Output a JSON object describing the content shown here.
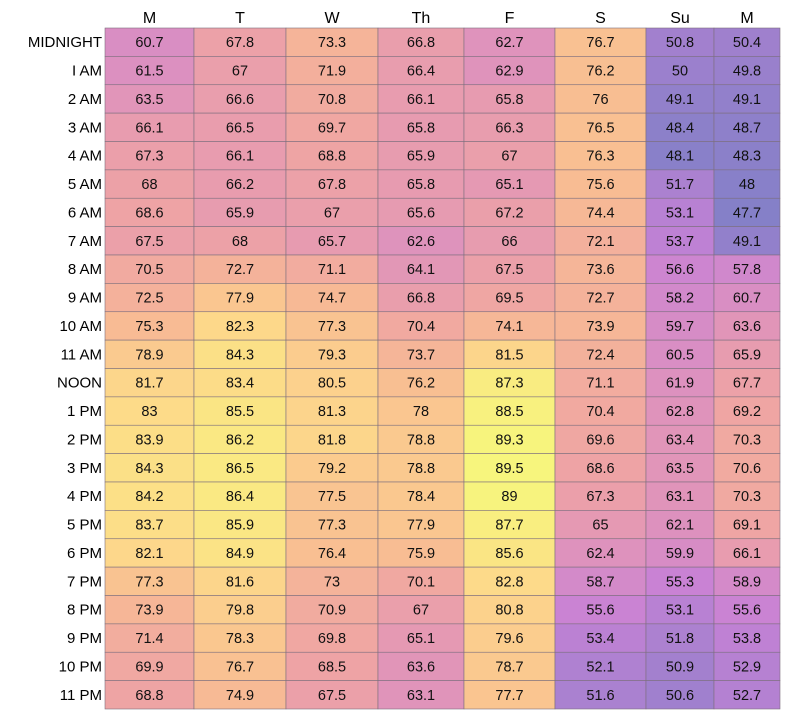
{
  "chart_data": {
    "type": "heatmap",
    "title": "",
    "xlabel": "",
    "ylabel": "",
    "columns": [
      "M",
      "T",
      "W",
      "Th",
      "F",
      "S",
      "Su",
      "M"
    ],
    "rows": [
      "MIDNIGHT",
      "I AM",
      "2 AM",
      "3 AM",
      "4 AM",
      "5 AM",
      "6 AM",
      "7 AM",
      "8 AM",
      "9 AM",
      "10 AM",
      "11 AM",
      "NOON",
      "1 PM",
      "2 PM",
      "3 PM",
      "4 PM",
      "5 PM",
      "6 PM",
      "7 PM",
      "8 PM",
      "9 PM",
      "10 PM",
      "11 PM"
    ],
    "values": [
      [
        60.7,
        67.8,
        73.3,
        66.8,
        62.7,
        76.7,
        50.8,
        50.4
      ],
      [
        61.5,
        67,
        71.9,
        66.4,
        62.9,
        76.2,
        50,
        49.8
      ],
      [
        63.5,
        66.6,
        70.8,
        66.1,
        65.8,
        76,
        49.1,
        49.1
      ],
      [
        66.1,
        66.5,
        69.7,
        65.8,
        66.3,
        76.5,
        48.4,
        48.7
      ],
      [
        67.3,
        66.1,
        68.8,
        65.9,
        67,
        76.3,
        48.1,
        48.3
      ],
      [
        68,
        66.2,
        67.8,
        65.8,
        65.1,
        75.6,
        51.7,
        48
      ],
      [
        68.6,
        65.9,
        67,
        65.6,
        67.2,
        74.4,
        53.1,
        47.7
      ],
      [
        67.5,
        68,
        65.7,
        62.6,
        66,
        72.1,
        53.7,
        49.1
      ],
      [
        70.5,
        72.7,
        71.1,
        64.1,
        67.5,
        73.6,
        56.6,
        57.8
      ],
      [
        72.5,
        77.9,
        74.7,
        66.8,
        69.5,
        72.7,
        58.2,
        60.7
      ],
      [
        75.3,
        82.3,
        77.3,
        70.4,
        74.1,
        73.9,
        59.7,
        63.6
      ],
      [
        78.9,
        84.3,
        79.3,
        73.7,
        81.5,
        72.4,
        60.5,
        65.9
      ],
      [
        81.7,
        83.4,
        80.5,
        76.2,
        87.3,
        71.1,
        61.9,
        67.7
      ],
      [
        83,
        85.5,
        81.3,
        78,
        88.5,
        70.4,
        62.8,
        69.2
      ],
      [
        83.9,
        86.2,
        81.8,
        78.8,
        89.3,
        69.6,
        63.4,
        70.3
      ],
      [
        84.3,
        86.5,
        79.2,
        78.8,
        89.5,
        68.6,
        63.5,
        70.6
      ],
      [
        84.2,
        86.4,
        77.5,
        78.4,
        89,
        67.3,
        63.1,
        70.3
      ],
      [
        83.7,
        85.9,
        77.3,
        77.9,
        87.7,
        65,
        62.1,
        69.1
      ],
      [
        82.1,
        84.9,
        76.4,
        75.9,
        85.6,
        62.4,
        59.9,
        66.1
      ],
      [
        77.3,
        81.6,
        73,
        70.1,
        82.8,
        58.7,
        55.3,
        58.9
      ],
      [
        73.9,
        79.8,
        70.9,
        67,
        80.8,
        55.6,
        53.1,
        55.6
      ],
      [
        71.4,
        78.3,
        69.8,
        65.1,
        79.6,
        53.4,
        51.8,
        53.8
      ],
      [
        69.9,
        76.7,
        68.5,
        63.6,
        78.7,
        52.1,
        50.9,
        52.9
      ],
      [
        68.8,
        74.9,
        67.5,
        63.1,
        77.7,
        51.6,
        50.6,
        52.7
      ]
    ],
    "color_scale": {
      "min": 47.7,
      "max": 89.5,
      "stops": [
        "#8580c8",
        "#c781d6",
        "#dc90c0",
        "#eea3a5",
        "#f8bc93",
        "#fdd98a",
        "#f7f57d"
      ]
    },
    "grid": true,
    "legend": "none"
  }
}
